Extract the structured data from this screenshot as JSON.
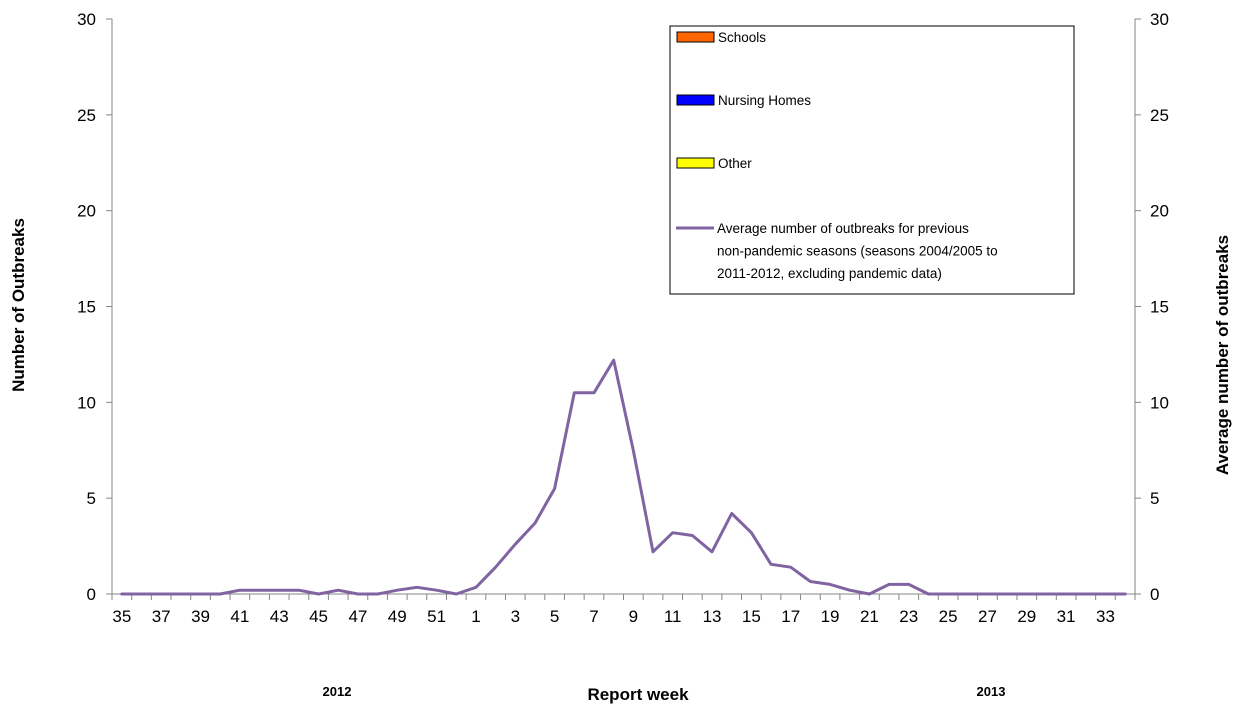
{
  "chart_data": {
    "type": "line",
    "xlabel": "Report week",
    "ylabel": "Number of Outbreaks",
    "y2label": "Average number of outbreaks",
    "ylim": [
      0,
      30
    ],
    "y2lim": [
      0,
      30
    ],
    "yticks": [
      "0",
      "5",
      "10",
      "15",
      "20",
      "25",
      "30"
    ],
    "y2ticks": [
      "0",
      "5",
      "10",
      "15",
      "20",
      "25",
      "30"
    ],
    "categories": [
      "35",
      "36",
      "37",
      "38",
      "39",
      "40",
      "41",
      "42",
      "43",
      "44",
      "45",
      "46",
      "47",
      "48",
      "49",
      "50",
      "51",
      "52",
      "1",
      "2",
      "3",
      "4",
      "5",
      "6",
      "7",
      "8",
      "9",
      "10",
      "11",
      "12",
      "13",
      "14",
      "15",
      "16",
      "17",
      "18",
      "19",
      "20",
      "21",
      "22",
      "23",
      "24",
      "25",
      "26",
      "27",
      "28",
      "29",
      "30",
      "31",
      "32",
      "33",
      "34"
    ],
    "tick_labels": [
      "35",
      "37",
      "39",
      "41",
      "43",
      "45",
      "47",
      "49",
      "51",
      "1",
      "3",
      "5",
      "7",
      "9",
      "11",
      "13",
      "15",
      "17",
      "19",
      "21",
      "23",
      "25",
      "27",
      "29",
      "31",
      "33"
    ],
    "year_labels": [
      "2012",
      "2013"
    ],
    "legend_position": "top-right",
    "legend": [
      {
        "kind": "box",
        "color": "#ff6600",
        "label": "Schools"
      },
      {
        "kind": "box",
        "color": "#0000ff",
        "label": "Nursing Homes"
      },
      {
        "kind": "box",
        "color": "#ffff00",
        "label": "Other"
      },
      {
        "kind": "line",
        "color": "#8064a2",
        "lines": [
          "Average number of outbreaks for previous",
          "non-pandemic seasons (seasons 2004/2005 to",
          "2011-2012, excluding pandemic data)"
        ]
      }
    ],
    "series": [
      {
        "name": "Average number of outbreaks for previous non-pandemic seasons (seasons 2004/2005 to 2011-2012, excluding pandemic data)",
        "color": "#8064a2",
        "axis": "right",
        "values": [
          0,
          0,
          0,
          0,
          0,
          0,
          0.2,
          0.2,
          0.2,
          0.2,
          0,
          0.2,
          0,
          0,
          0.2,
          0.35,
          0.2,
          0,
          0.35,
          1.4,
          2.6,
          3.7,
          5.5,
          10.5,
          10.5,
          12.2,
          7.5,
          2.2,
          3.2,
          3.05,
          2.2,
          4.2,
          3.2,
          1.55,
          1.4,
          0.65,
          0.5,
          0.2,
          0,
          0.5,
          0.5,
          0,
          0,
          0,
          0,
          0,
          0,
          0,
          0,
          0,
          0,
          0
        ]
      }
    ],
    "grid": false
  }
}
